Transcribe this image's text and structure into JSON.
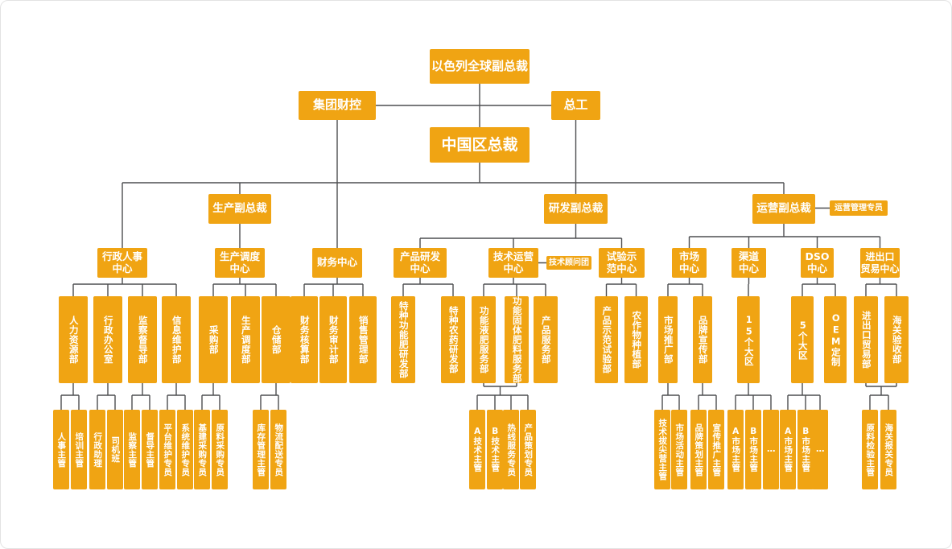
{
  "diagram": {
    "type": "org-chart",
    "title": "",
    "colors": {
      "node_fill": "#F0A413",
      "node_text": "#FFFFFF",
      "connector_line": "#4D4E50",
      "background": "#FFFFFF"
    },
    "nodes": {
      "vp_global": "以色列全球副总裁",
      "group_fin": "集团财控",
      "chief_eng": "总工",
      "ceo_china": "中国区总裁",
      "vp_prod": "生产副总裁",
      "vp_rd": "研发副总裁",
      "vp_ops": "运营副总裁",
      "ops_spec": "运营管理专员",
      "admin_hr": "行政人事\n中心",
      "prod_dispatch": "生产调度\n中心",
      "finance": "财务中心",
      "product_rd": "产品研发\n中心",
      "tech_ops": "技术运营\n中心",
      "tech_advisors": "技术顾问团",
      "trial_demo": "试验示\n范中心",
      "market": "市场\n中心",
      "channel": "渠道\n中心",
      "dso": "DSO\n中心",
      "import_export": "进出口\n贸易中心",
      "hr": "人力资源部",
      "admin_office": "行政办公室",
      "supervision": "监察督导部",
      "info_maint": "信息维护部",
      "purchasing": "采购部",
      "dispatch_dept": "生产调度部",
      "warehouse": "仓储部",
      "fin_accounting": "财务核算部",
      "fin_audit": "财务审计部",
      "sales_mgmt": "销售管理部",
      "special_fert_rd": "特种功能肥研发部",
      "special_pest_rd": "特种农药研发部",
      "liquid_fert": "功能液肥服务部",
      "solid_fert": "功能固体肥料服务部",
      "product_service": "产品服务部",
      "demo_trial": "产品示范试验部",
      "crop_planting": "农作物种植部",
      "market_promo": "市场推广部",
      "brand_pub": "品牌宣传部",
      "regions15": "15个大区",
      "regions5": "5个大区",
      "oem": "OEM定制",
      "ie_dept": "进出口贸易部",
      "customs_accept": "海关验收部",
      "hr_sup": "人事主管",
      "training_sup": "培训主管",
      "admin_asst": "行政助理",
      "driver_team": "司机班",
      "inspect_sup": "监察主管",
      "supervise_sup": "督导主管",
      "platform_maint": "平台维护专员",
      "system_maint": "系统维护专员",
      "infra_buyer": "基建采购专员",
      "material_buyer": "原料采购专员",
      "inventory_sup": "库存管理主管",
      "logistics_spec": "物流配送专员",
      "tech_a_sup": "A技术主管",
      "tech_b_sup": "B技术主管",
      "hotline_spec": "热线服务专员",
      "product_plan_spec": "产品策划专员",
      "tech_camp_sup": "技术拔尖营主管",
      "market_activity_sup": "市场活动主管",
      "brand_plan_sup": "品牌策划主管",
      "promo_sup": "宣传推广主管",
      "market_a_sup_15": "A市场主管",
      "market_b_sup_15": "B市场主管",
      "more_15": "…",
      "market_a_sup_5": "A市场主管",
      "market_b_sup_5": "B市场主管",
      "more_5": "…",
      "material_inspect_sup": "原料检验主管",
      "customs_declare_spec": "海关报关专员"
    }
  }
}
